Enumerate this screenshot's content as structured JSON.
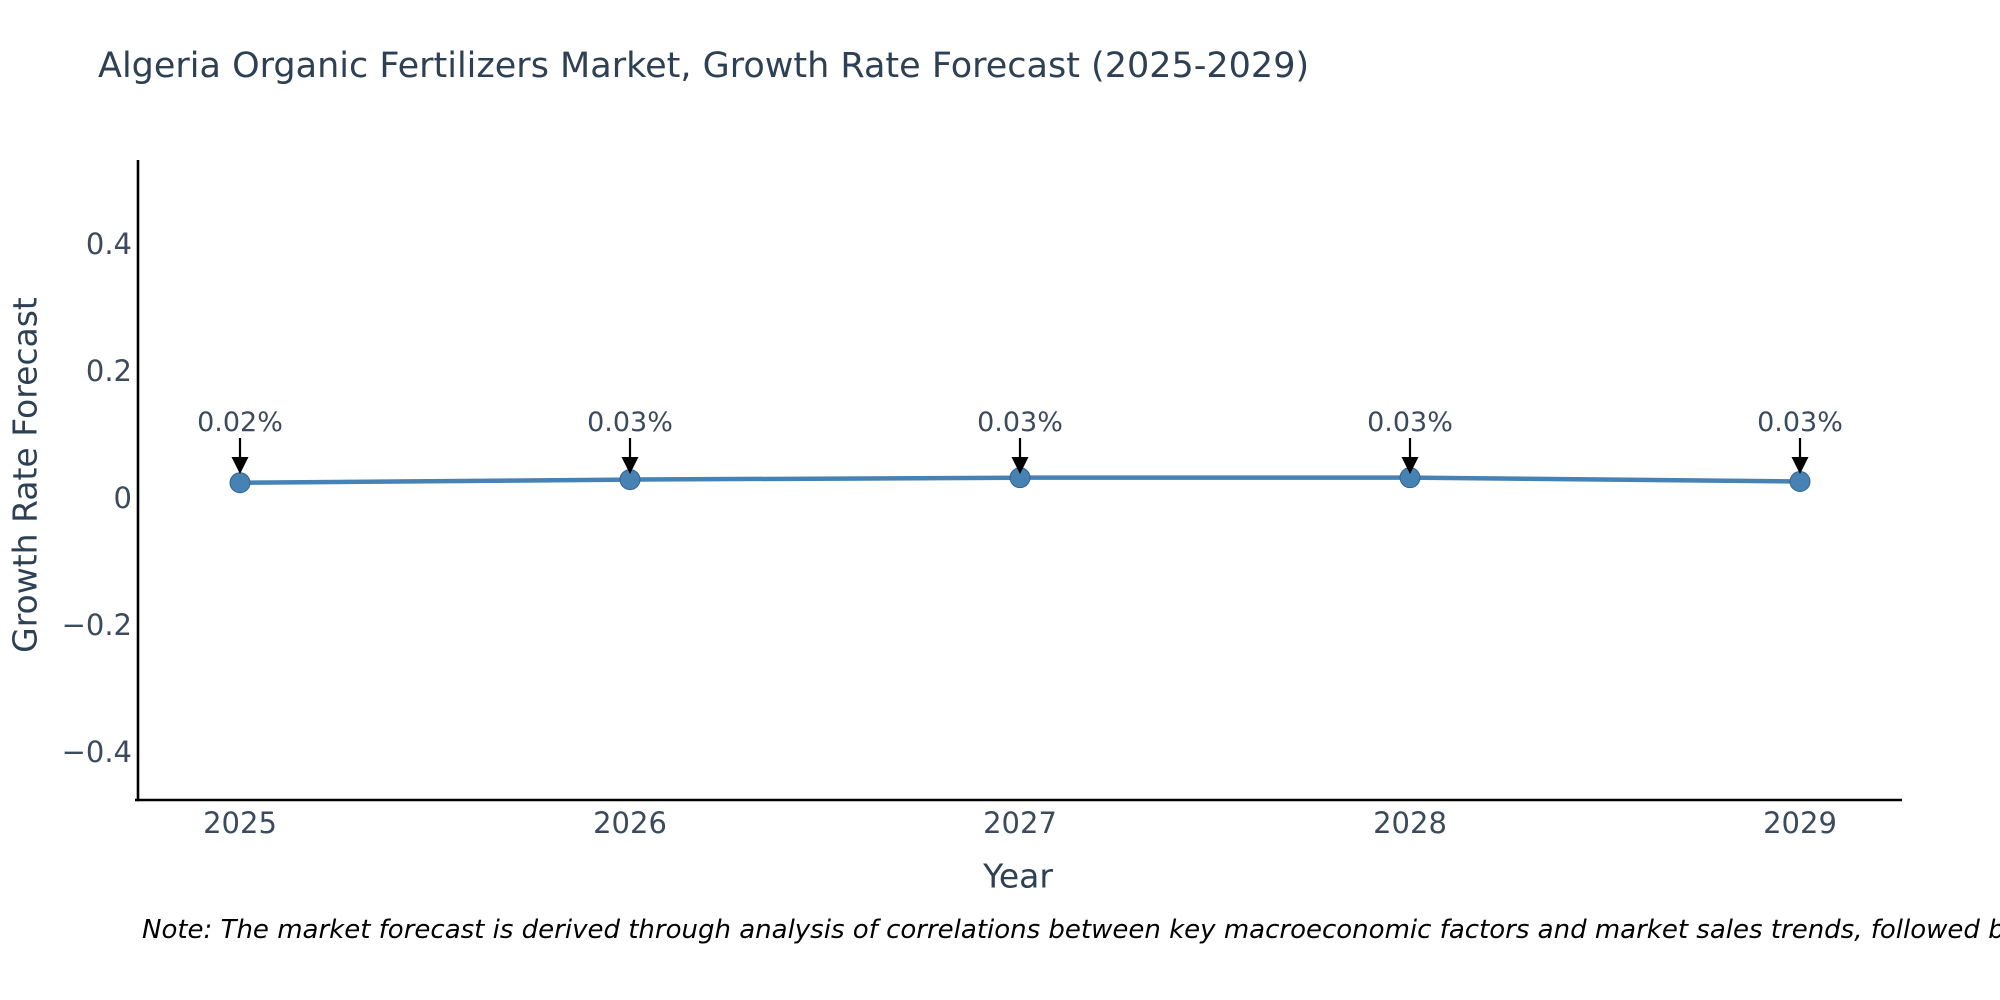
{
  "note": "Note: The market forecast is derived through analysis of correlations between key macroeconomic factors and market sales trends, followed by predictive modeling to project future sales.",
  "chart_data": {
    "type": "line",
    "title": "Algeria Organic Fertilizers Market, Growth Rate Forecast (2025-2029)",
    "xlabel": "Year",
    "ylabel": "Growth Rate Forecast",
    "categories": [
      "2025",
      "2026",
      "2027",
      "2028",
      "2029"
    ],
    "series": [
      {
        "name": "Growth Rate Forecast",
        "values": [
          0.02,
          0.03,
          0.03,
          0.03,
          0.03
        ],
        "plotted_values": [
          0.024,
          0.029,
          0.032,
          0.032,
          0.026
        ],
        "point_labels": [
          "0.02%",
          "0.03%",
          "0.03%",
          "0.03%",
          "0.03%"
        ]
      }
    ],
    "yticks": [
      0.4,
      0.2,
      0,
      -0.2,
      -0.4
    ],
    "ytick_labels": [
      "0.4",
      "0.2",
      "0",
      "−0.2",
      "−0.4"
    ],
    "ylim": [
      -0.48,
      0.53
    ],
    "grid": false,
    "legend": false,
    "annotation_arrows": true,
    "colors": {
      "line": "#4682b4",
      "marker": "#4682b4",
      "marker_edge": "#36648b",
      "axis": "#000000",
      "arrow": "#000000",
      "title_text": "#2e4053",
      "tick_text": "#3b4a5c",
      "annotation_text": "#3b4a5c",
      "note_text": "#000000",
      "background": "#ffffff"
    }
  }
}
